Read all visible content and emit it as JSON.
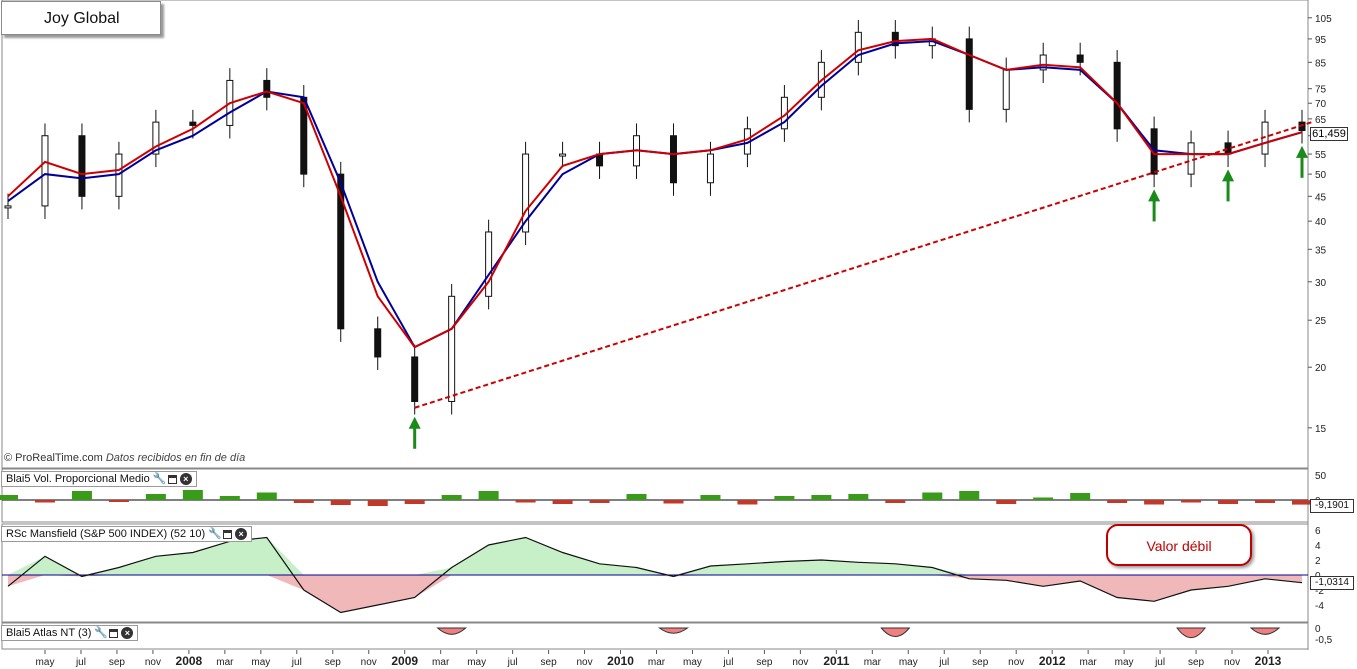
{
  "chart_title": "Joy Global",
  "credit": {
    "prefix": "© ProRealTime.com",
    "note": "Datos recibidos en fin de día"
  },
  "panels": [
    {
      "label": "Blai5 Vol. Proporcional Medio"
    },
    {
      "label": "RSc Mansfield (S&P 500 INDEX) (52 10)"
    },
    {
      "label": "Blai5 Atlas NT (3)"
    }
  ],
  "callout": "Valor débil",
  "last_price": "61,459",
  "vol_last": "-9,1901",
  "rsc_last": "-1,0314",
  "price_axis_ticks": [
    "105",
    "95",
    "85",
    "75",
    "70",
    "65",
    "60",
    "55",
    "50",
    "45",
    "40",
    "35",
    "30",
    "25",
    "20",
    "15"
  ],
  "vol_axis_ticks": [
    "50",
    "0"
  ],
  "rsc_axis_ticks": [
    "6",
    "4",
    "2",
    "0",
    "-2",
    "-4"
  ],
  "atlas_axis_ticks": [
    "0",
    "-0,5"
  ],
  "time_axis": [
    "may",
    "jul",
    "sep",
    "nov",
    "2008",
    "mar",
    "may",
    "jul",
    "sep",
    "nov",
    "2009",
    "mar",
    "may",
    "jul",
    "sep",
    "nov",
    "2010",
    "mar",
    "may",
    "jul",
    "sep",
    "nov",
    "2011",
    "mar",
    "may",
    "jul",
    "sep",
    "nov",
    "2012",
    "mar",
    "may",
    "jul",
    "sep",
    "nov",
    "2013"
  ],
  "colors": {
    "ma_fast": "#cc0000",
    "ma_slow": "#000099",
    "trendline": "#cc0000",
    "arrow": "#1a8a1a",
    "vol_up": "#3a9a1a",
    "vol_down": "#c0392b",
    "rsc_pos": "#c8f0c8",
    "rsc_neg": "#f0b8b8"
  },
  "chart_data": {
    "type": "line",
    "scale": "log",
    "ylim": [
      13,
      110
    ],
    "x": [
      "2007-05",
      "2007-07",
      "2007-09",
      "2007-11",
      "2008-01",
      "2008-03",
      "2008-05",
      "2008-07",
      "2008-09",
      "2008-11",
      "2009-01",
      "2009-03",
      "2009-05",
      "2009-07",
      "2009-09",
      "2009-11",
      "2010-01",
      "2010-03",
      "2010-05",
      "2010-07",
      "2010-09",
      "2010-11",
      "2011-01",
      "2011-03",
      "2011-05",
      "2011-07",
      "2011-09",
      "2011-11",
      "2012-01",
      "2012-03",
      "2012-05",
      "2012-07",
      "2012-09",
      "2012-11",
      "2013-01",
      "2013-02"
    ],
    "price": [
      43,
      60,
      45,
      55,
      64,
      63,
      78,
      72,
      50,
      24,
      21,
      17,
      28,
      38,
      55,
      55,
      52,
      60,
      48,
      55,
      62,
      72,
      85,
      98,
      92,
      95,
      68,
      82,
      88,
      85,
      62,
      50,
      58,
      55,
      64,
      61.5
    ],
    "ma_fast": [
      45,
      53,
      50,
      51,
      57,
      62,
      70,
      74,
      70,
      45,
      28,
      22,
      24,
      30,
      42,
      52,
      55,
      56,
      55,
      56,
      59,
      66,
      78,
      90,
      94,
      95,
      88,
      82,
      84,
      83,
      70,
      55,
      55,
      55,
      58,
      61
    ],
    "ma_slow": [
      44,
      50,
      49,
      50,
      56,
      60,
      67,
      74,
      72,
      48,
      30,
      22,
      24,
      31,
      40,
      50,
      55,
      56,
      55,
      56,
      58,
      64,
      76,
      88,
      93,
      94,
      88,
      82,
      83,
      82,
      70,
      56,
      55,
      55,
      58,
      61
    ],
    "trendline": [
      [
        "2009-03",
        16.5
      ],
      [
        "2013-02",
        63
      ]
    ],
    "arrows_at": [
      "2009-03",
      "2012-07",
      "2012-08",
      "2012-11",
      "2013-02"
    ],
    "volume": [
      10,
      -5,
      18,
      -4,
      12,
      20,
      8,
      15,
      -6,
      -10,
      -12,
      -8,
      10,
      18,
      -5,
      -8,
      -6,
      12,
      -7,
      10,
      -9,
      8,
      10,
      12,
      -6,
      15,
      18,
      -8,
      5,
      14,
      -6,
      -9,
      -5,
      -8,
      -6,
      -9.19
    ],
    "rsc": [
      -1.5,
      2.5,
      -0.2,
      1,
      2.5,
      3,
      4.5,
      5,
      -2,
      -5,
      -4,
      -3,
      1,
      4,
      5,
      3,
      1.5,
      1,
      -0.2,
      1.2,
      1.5,
      1.8,
      2,
      1.7,
      1.5,
      1,
      -0.5,
      -0.7,
      -1.5,
      -0.8,
      -3,
      -3.5,
      -2,
      -1.5,
      -0.5,
      -1.0314
    ],
    "atlas": [
      0,
      0,
      0,
      0,
      0,
      0,
      0,
      0,
      0,
      0,
      0,
      0,
      -0.3,
      0,
      0,
      0,
      0,
      0,
      -0.2,
      0,
      0,
      0,
      0,
      0,
      -0.5,
      0,
      0,
      0,
      0,
      0,
      0,
      0,
      -0.6,
      0,
      -0.3,
      0
    ]
  }
}
